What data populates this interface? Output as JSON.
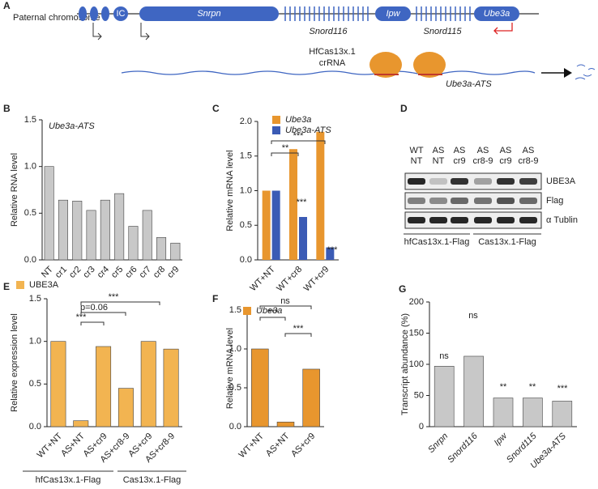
{
  "diagram": {
    "panel": "A",
    "chromosome": "Paternal chromosome",
    "genes": [
      "IC",
      "Snrpn",
      "Ipw",
      "Ube3a"
    ],
    "clusters": [
      "Snord116",
      "Snord115"
    ],
    "enzyme": "HfCas13x.1",
    "guide": "crRNA",
    "target": "Ube3a-ATS"
  },
  "blot": {
    "panel": "D",
    "lanes": [
      [
        "WT",
        "NT"
      ],
      [
        "AS",
        "NT"
      ],
      [
        "AS",
        "cr9"
      ],
      [
        "AS",
        "cr8-9"
      ],
      [
        "AS",
        "cr9"
      ],
      [
        "AS",
        "cr8-9"
      ]
    ],
    "bands": [
      "UBE3A",
      "Flag",
      "α Tublin"
    ],
    "groups": [
      "hfCas13x.1-Flag",
      "Cas13x.1-Flag"
    ]
  },
  "chart_data": [
    {
      "type": "bar",
      "panel": "B",
      "annotation": "Ube3a-ATS",
      "ylabel": "Relative RNA level",
      "categories": [
        "NT",
        "cr1",
        "cr2",
        "cr3",
        "cr4",
        "cr5",
        "cr6",
        "cr7",
        "cr8",
        "cr9"
      ],
      "values": [
        1.0,
        0.64,
        0.63,
        0.53,
        0.64,
        0.71,
        0.36,
        0.53,
        0.24,
        0.18
      ],
      "color": "#c8c8c8",
      "ylim": [
        0,
        1.5
      ],
      "yticks": [
        {
          "value": 0,
          "label": "0.0"
        },
        {
          "value": 0.5,
          "label": "0.5"
        },
        {
          "value": 1,
          "label": "1.0"
        },
        {
          "value": 1.5,
          "label": "1.5"
        }
      ]
    },
    {
      "type": "bar",
      "panel": "C",
      "ylabel": "Relative mRNA level",
      "categories": [
        "WT+NT",
        "WT+cr8",
        "WT+cr9"
      ],
      "series": [
        {
          "name": "Ube3a",
          "color": "#e8962e",
          "values": [
            1.0,
            1.6,
            1.85
          ]
        },
        {
          "name": "Ube3a-ATS",
          "color": "#3b5bb5",
          "values": [
            1.0,
            0.62,
            0.18
          ]
        }
      ],
      "ylim": [
        0,
        2
      ],
      "yticks": [
        {
          "value": 0,
          "label": "0.0"
        },
        {
          "value": 0.5,
          "label": "0.5"
        },
        {
          "value": 1,
          "label": "1.0"
        },
        {
          "value": 1.5,
          "label": "1.5"
        },
        {
          "value": 2,
          "label": "2.0"
        }
      ],
      "annotations": [
        "**",
        "***",
        "***",
        "***"
      ]
    },
    {
      "type": "bar",
      "panel": "E",
      "ylabel": "Relative expression level",
      "legend": "UBE3A",
      "categories": [
        "WT+NT",
        "AS+NT",
        "AS+cr9",
        "AS+cr8-9",
        "AS+cr9",
        "AS+cr8-9"
      ],
      "values": [
        1.0,
        0.07,
        0.94,
        0.45,
        1.0,
        0.91
      ],
      "color": "#f2b451",
      "ylim": [
        0,
        1.5
      ],
      "yticks": [
        {
          "value": 0,
          "label": "0.0"
        },
        {
          "value": 0.5,
          "label": "0.5"
        },
        {
          "value": 1,
          "label": "1.0"
        },
        {
          "value": 1.5,
          "label": "1.5"
        }
      ],
      "annotations": [
        "***",
        "p=0.06",
        "***"
      ],
      "group_labels": [
        "hfCas13x.1-Flag",
        "Cas13x.1-Flag"
      ]
    },
    {
      "type": "bar",
      "panel": "F",
      "ylabel": "Relative mRNA level",
      "legend": "Ube3a",
      "categories": [
        "WT+NT",
        "AS+NT",
        "AS+cr9"
      ],
      "values": [
        1.0,
        0.06,
        0.74
      ],
      "color": "#e8962e",
      "ylim": [
        0,
        1.5
      ],
      "yticks": [
        {
          "value": 0,
          "label": "0.0"
        },
        {
          "value": 0.5,
          "label": "0.5"
        },
        {
          "value": 1,
          "label": "1.0"
        },
        {
          "value": 1.5,
          "label": "1.5"
        }
      ],
      "annotations": [
        "***",
        "ns",
        "***"
      ]
    },
    {
      "type": "bar",
      "panel": "G",
      "ylabel": "Transcript abundance (%)",
      "categories": [
        "Snrpn",
        "Snord116",
        "Ipw",
        "Snord115",
        "Ube3a-ATS"
      ],
      "values": [
        97,
        113,
        46,
        46,
        41
      ],
      "color": "#c8c8c8",
      "ylim": [
        0,
        200
      ],
      "yticks": [
        0,
        50,
        100,
        150,
        200
      ],
      "annotations": [
        "ns",
        "ns",
        "**",
        "**",
        "***"
      ]
    }
  ]
}
